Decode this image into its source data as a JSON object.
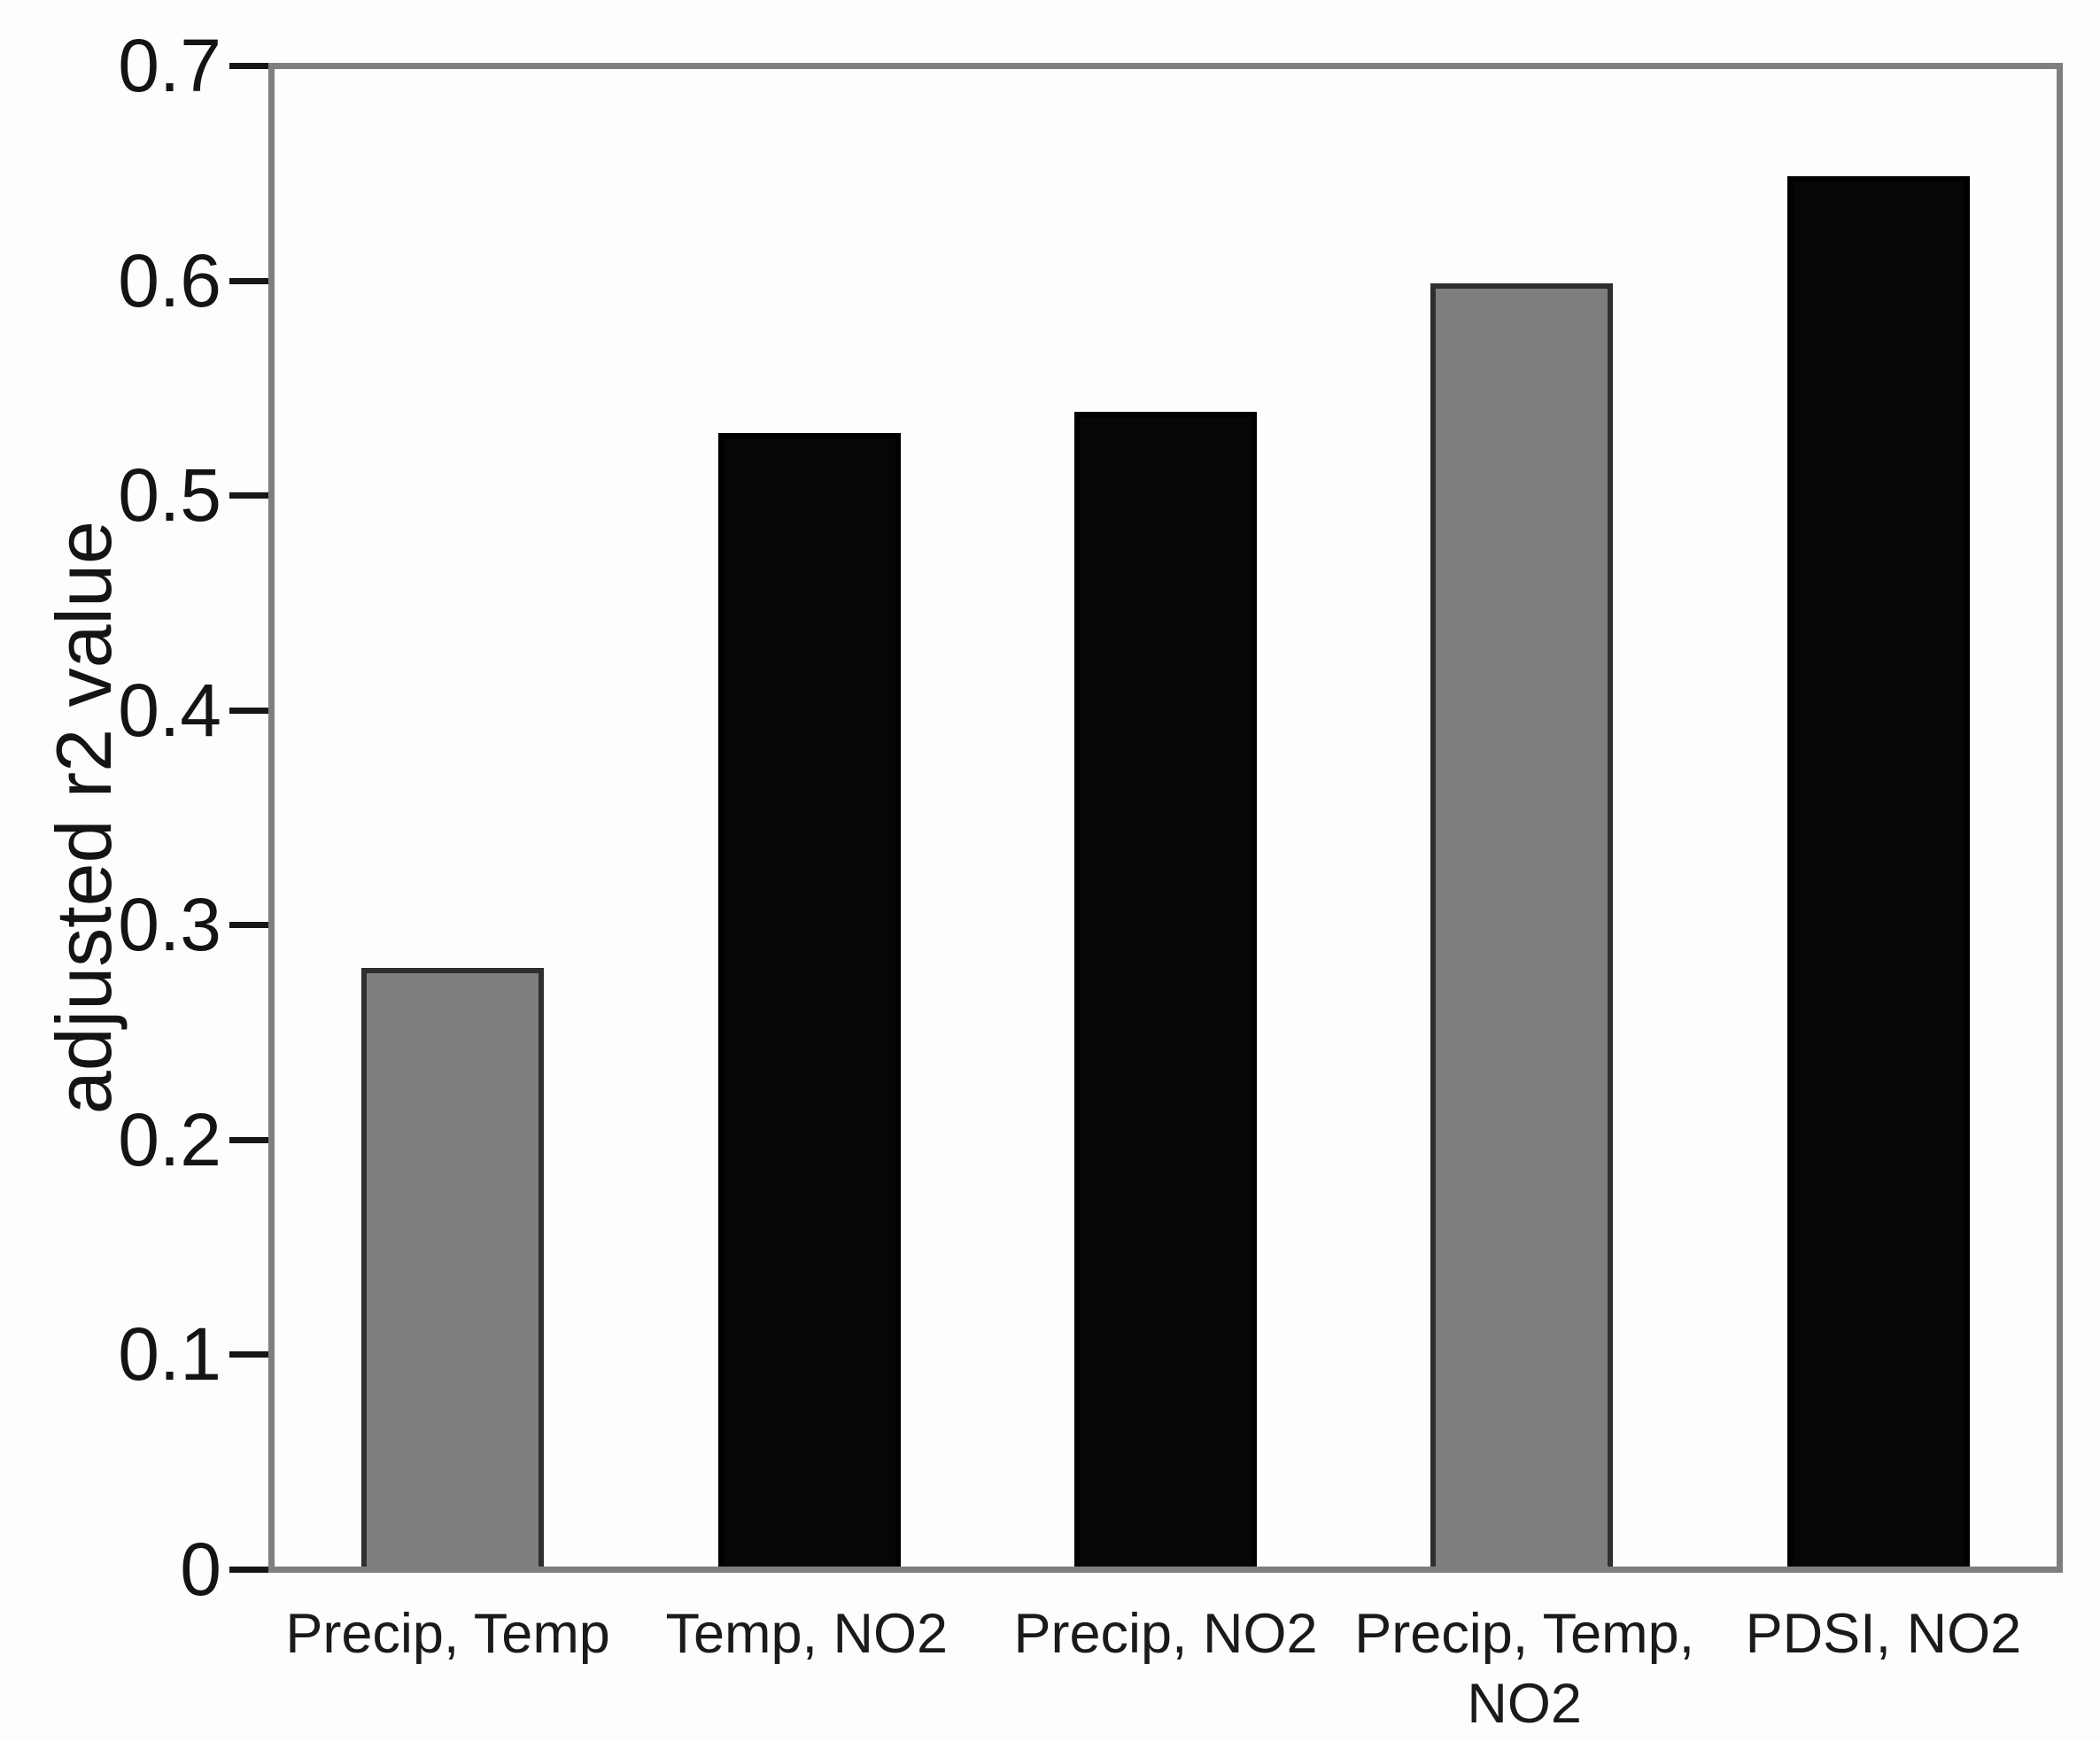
{
  "chart_data": {
    "type": "bar",
    "title": "",
    "xlabel": "",
    "ylabel": "adjusted r2 value",
    "categories": [
      "Precip, Temp",
      "Temp, NO2",
      "Precip, NO2",
      "Precip, Temp,\nNO2",
      "PDSI, NO2"
    ],
    "values": [
      0.28,
      0.53,
      0.54,
      0.6,
      0.65
    ],
    "bar_colors": [
      "gray",
      "black",
      "black",
      "gray",
      "black"
    ],
    "ylim": [
      0,
      0.7
    ],
    "yticks": [
      0,
      0.1,
      0.2,
      0.3,
      0.4,
      0.5,
      0.6,
      0.7
    ],
    "ytick_labels": [
      "0",
      "0.1",
      "0.2",
      "0.3",
      "0.4",
      "0.5",
      "0.6",
      "0.7"
    ],
    "grid": false,
    "legend": false
  },
  "colors": {
    "gray_fill": "#7d7e80",
    "gray_border": "#2f2f2f",
    "black_fill": "#060606",
    "black_border": "#000000",
    "frame": "#7f7f7f",
    "tick": "#161616",
    "text": "#1a1a1a",
    "background": "#fdfdfd"
  }
}
